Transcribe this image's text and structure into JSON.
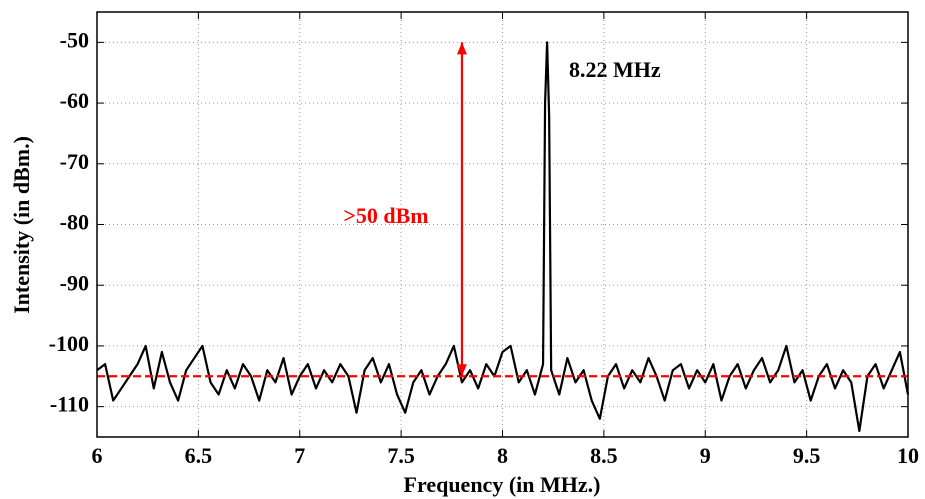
{
  "chart_data": {
    "type": "line",
    "xlabel": "Frequency (in MHz.)",
    "ylabel": "Intensity (in dBm.)",
    "x": [
      6.0,
      6.04,
      6.08,
      6.12,
      6.16,
      6.2,
      6.24,
      6.28,
      6.32,
      6.36,
      6.4,
      6.44,
      6.48,
      6.52,
      6.56,
      6.6,
      6.64,
      6.68,
      6.72,
      6.76,
      6.8,
      6.84,
      6.88,
      6.92,
      6.96,
      7.0,
      7.04,
      7.08,
      7.12,
      7.16,
      7.2,
      7.24,
      7.28,
      7.32,
      7.36,
      7.4,
      7.44,
      7.48,
      7.52,
      7.56,
      7.6,
      7.64,
      7.68,
      7.72,
      7.76,
      7.8,
      7.84,
      7.88,
      7.92,
      7.96,
      8.0,
      8.04,
      8.08,
      8.12,
      8.16,
      8.2,
      8.21,
      8.22,
      8.23,
      8.24,
      8.28,
      8.32,
      8.36,
      8.4,
      8.44,
      8.48,
      8.52,
      8.56,
      8.6,
      8.64,
      8.68,
      8.72,
      8.76,
      8.8,
      8.84,
      8.88,
      8.92,
      8.96,
      9.0,
      9.04,
      9.08,
      9.12,
      9.16,
      9.2,
      9.24,
      9.28,
      9.32,
      9.36,
      9.4,
      9.44,
      9.48,
      9.52,
      9.56,
      9.6,
      9.64,
      9.68,
      9.72,
      9.76,
      9.8,
      9.84,
      9.88,
      9.92,
      9.96,
      10.0
    ],
    "values": [
      -104,
      -103,
      -109,
      -107,
      -105,
      -103,
      -100,
      -107,
      -101,
      -106,
      -109,
      -104,
      -102,
      -100,
      -106,
      -108,
      -104,
      -107,
      -103,
      -105,
      -109,
      -104,
      -106,
      -102,
      -108,
      -105,
      -103,
      -107,
      -104,
      -106,
      -103,
      -105,
      -111,
      -104,
      -102,
      -106,
      -103,
      -108,
      -111,
      -106,
      -104,
      -108,
      -105,
      -103,
      -100,
      -106,
      -104,
      -107,
      -103,
      -105,
      -101,
      -100,
      -106,
      -104,
      -108,
      -103,
      -60,
      -50,
      -62,
      -104,
      -108,
      -102,
      -106,
      -104,
      -109,
      -112,
      -105,
      -103,
      -107,
      -104,
      -106,
      -102,
      -105,
      -109,
      -104,
      -103,
      -107,
      -104,
      -106,
      -103,
      -109,
      -105,
      -103,
      -107,
      -104,
      -102,
      -106,
      -104,
      -100,
      -106,
      -104,
      -109,
      -105,
      -103,
      -107,
      -104,
      -106,
      -114,
      -105,
      -103,
      -107,
      -104,
      -101,
      -108
    ],
    "color": "#000000",
    "xlim": [
      6,
      10
    ],
    "xticks": [
      6,
      6.5,
      7,
      7.5,
      8,
      8.5,
      9,
      9.5,
      10
    ],
    "ylim": [
      -115,
      -45
    ],
    "yticks": [
      -110,
      -100,
      -90,
      -80,
      -70,
      -60,
      -50
    ],
    "grid": true,
    "reference_line": {
      "value": -105,
      "color": "#ff0000"
    },
    "arrow": {
      "x": 7.8,
      "y": [
        -105,
        -50
      ],
      "color": "#ff0000"
    },
    "annotations": [
      ">50 dBm",
      "8.22 MHz"
    ]
  }
}
